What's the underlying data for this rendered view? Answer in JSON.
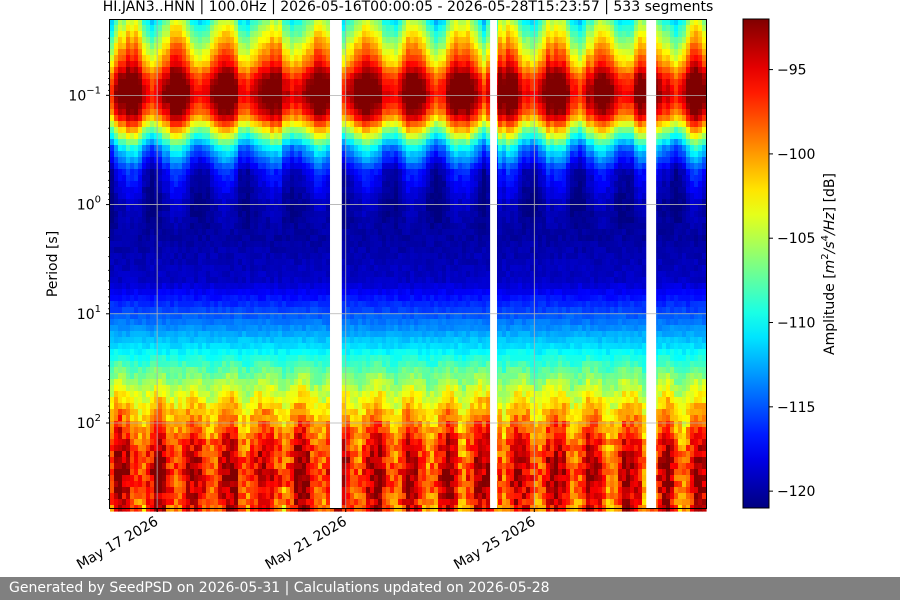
{
  "chart_data": {
    "type": "heatmap",
    "title": "HI.JAN3..HNN | 100.0Hz | 2026-05-16T00:00:05 - 2026-05-28T15:23:57 | 533 segments",
    "xlabel": "",
    "ylabel": "Period [s]",
    "yscale": "log",
    "ylim": [
      0.02,
      600
    ],
    "y_ticks": [
      {
        "value": 0.1,
        "label": "10^-1",
        "base": "10",
        "exp": "−1"
      },
      {
        "value": 1,
        "label": "10^0",
        "base": "10",
        "exp": "0"
      },
      {
        "value": 10,
        "label": "10^1",
        "base": "10",
        "exp": "1"
      },
      {
        "value": 100,
        "label": "10^2",
        "base": "10",
        "exp": "2"
      }
    ],
    "x_start": "2026-05-16T00:00:05",
    "x_end": "2026-05-28T15:23:57",
    "x_ticks": [
      {
        "date": "2026-05-17",
        "label": "May 17 2026"
      },
      {
        "date": "2026-05-21",
        "label": "May 21 2026"
      },
      {
        "date": "2026-05-25",
        "label": "May 25 2026"
      }
    ],
    "grid": true,
    "colorbar": {
      "label_prefix": "Amplitude [",
      "label_unit": "m²/s⁴/Hz",
      "label_suffix": "] [dB]",
      "label": "Amplitude [m^2/s^4/Hz] [dB]",
      "range": [
        -121,
        -92
      ],
      "ticks": [
        -95,
        -100,
        -105,
        -110,
        -115,
        -120
      ],
      "colormap": "jet"
    },
    "data_gaps": [
      {
        "start": "2026-05-20T16:00",
        "end": "2026-05-20T22:00"
      },
      {
        "start": "2026-05-24T01:30",
        "end": "2026-05-24T05:00"
      },
      {
        "start": "2026-05-27T09:00",
        "end": "2026-05-27T14:00"
      }
    ],
    "spectral_profile": [
      {
        "period": 0.02,
        "amplitude_db": -108
      },
      {
        "period": 0.03,
        "amplitude_db": -104
      },
      {
        "period": 0.05,
        "amplitude_db": -99
      },
      {
        "period": 0.07,
        "amplitude_db": -94
      },
      {
        "period": 0.1,
        "amplitude_db": -92
      },
      {
        "period": 0.15,
        "amplitude_db": -96
      },
      {
        "period": 0.2,
        "amplitude_db": -103
      },
      {
        "period": 0.3,
        "amplitude_db": -112
      },
      {
        "period": 0.5,
        "amplitude_db": -118
      },
      {
        "period": 1,
        "amplitude_db": -120
      },
      {
        "period": 2,
        "amplitude_db": -120
      },
      {
        "period": 5,
        "amplitude_db": -119
      },
      {
        "period": 10,
        "amplitude_db": -115
      },
      {
        "period": 20,
        "amplitude_db": -111
      },
      {
        "period": 40,
        "amplitude_db": -106
      },
      {
        "period": 80,
        "amplitude_db": -101
      },
      {
        "period": 150,
        "amplitude_db": -97
      },
      {
        "period": 300,
        "amplitude_db": -95
      },
      {
        "period": 600,
        "amplitude_db": -97
      }
    ]
  },
  "footer": {
    "text": "Generated by SeedPSD on 2026-05-31 | Calculations updated on 2026-05-28"
  }
}
